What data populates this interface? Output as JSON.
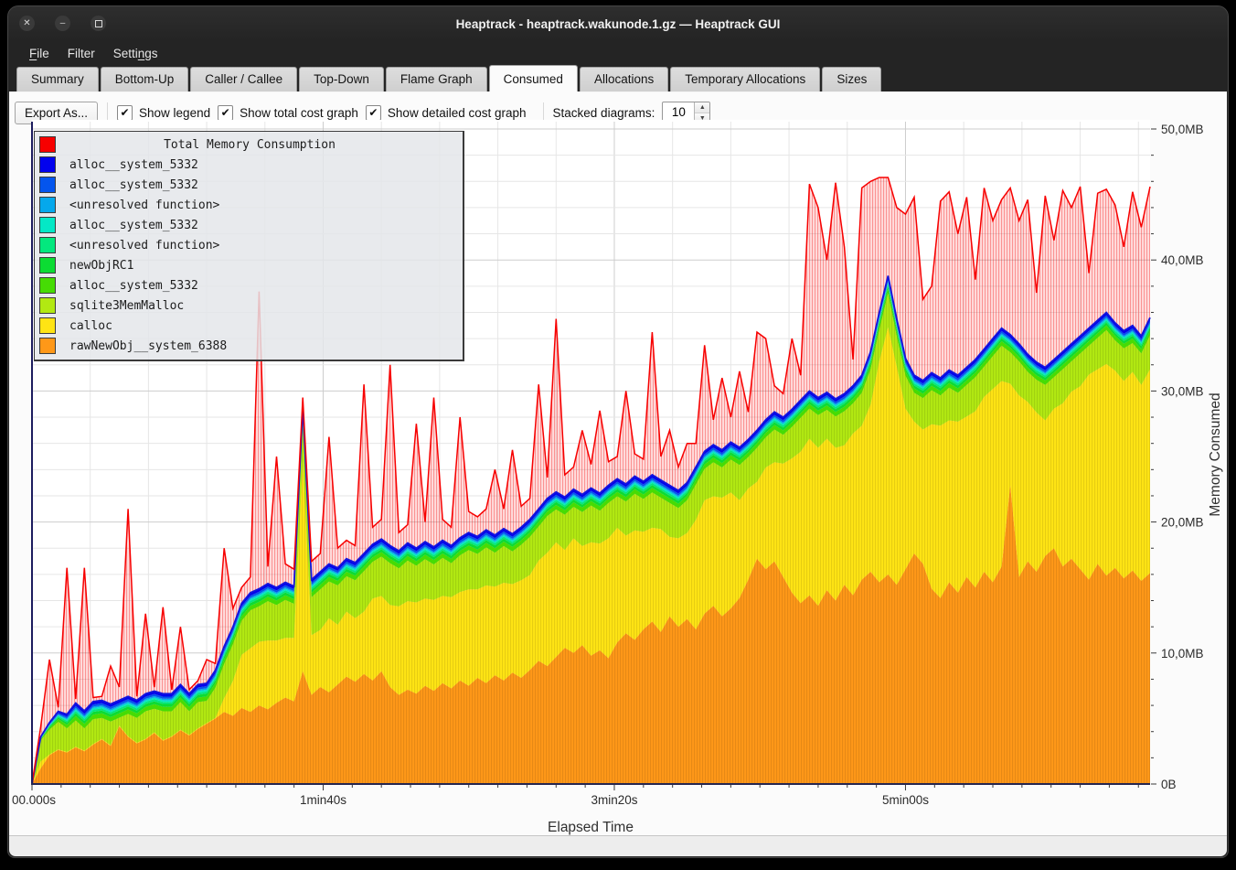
{
  "window": {
    "title": "Heaptrack - heaptrack.wakunode.1.gz — Heaptrack GUI",
    "controls": [
      "close",
      "minimize",
      "maximize"
    ]
  },
  "menu": {
    "items": [
      {
        "label": "File",
        "underline_index": 0
      },
      {
        "label": "Filter",
        "underline_index": -1
      },
      {
        "label": "Settings",
        "underline_index": 5
      }
    ]
  },
  "tabs": [
    {
      "label": "Summary",
      "active": false
    },
    {
      "label": "Bottom-Up",
      "active": false
    },
    {
      "label": "Caller / Callee",
      "active": false
    },
    {
      "label": "Top-Down",
      "active": false
    },
    {
      "label": "Flame Graph",
      "active": false
    },
    {
      "label": "Consumed",
      "active": true
    },
    {
      "label": "Allocations",
      "active": false
    },
    {
      "label": "Temporary Allocations",
      "active": false
    },
    {
      "label": "Sizes",
      "active": false
    }
  ],
  "toolbar": {
    "export_label": "Export As...",
    "checkboxes": [
      {
        "label": "Show legend",
        "checked": true
      },
      {
        "label": "Show total cost graph",
        "checked": true
      },
      {
        "label": "Show detailed cost graph",
        "checked": true
      }
    ],
    "stacked_label": "Stacked diagrams:",
    "stacked_value": "10",
    "check_glyph": "✔"
  },
  "chart_data": {
    "type": "area",
    "stacked": true,
    "title": "Total Memory Consumption",
    "xlabel": "Elapsed Time",
    "ylabel": "Memory Consumed",
    "x_unit": "s",
    "x_step_s": 3,
    "x_max_s": 384,
    "ylim_mb": [
      0,
      50
    ],
    "x_ticks": [
      {
        "t": 0,
        "label": "00.000s"
      },
      {
        "t": 100,
        "label": "1min40s"
      },
      {
        "t": 200,
        "label": "3min20s"
      },
      {
        "t": 300,
        "label": "5min00s"
      }
    ],
    "y_ticks": [
      {
        "v": 0,
        "label": "0B"
      },
      {
        "v": 10,
        "label": "10,0MB"
      },
      {
        "v": 20,
        "label": "20,0MB"
      },
      {
        "v": 30,
        "label": "30,0MB"
      },
      {
        "v": 40,
        "label": "40,0MB"
      },
      {
        "v": 50,
        "label": "50,0MB"
      }
    ],
    "grid": {
      "minor_x_s": 20,
      "major_x_s": 100,
      "minor_y_mb": 2,
      "major_y_mb": 10
    },
    "total_line": {
      "name": "Total Memory Consumption",
      "color": "#f70000",
      "values_mb": [
        0,
        4.4,
        9.5,
        5.8,
        16.5,
        6.4,
        16.5,
        6.6,
        6.2,
        9.0,
        7.4,
        21.0,
        6.6,
        13.0,
        6.8,
        13.5,
        7.0,
        12.0,
        7.2,
        7.6,
        9.5,
        9.2,
        18.0,
        13.4,
        15.0,
        15.8,
        37.6,
        16.6,
        25.0,
        16.8,
        16.4,
        29.5,
        17.0,
        17.6,
        26.5,
        18.0,
        18.6,
        18.2,
        30.5,
        19.6,
        20.2,
        32.0,
        19.2,
        19.8,
        27.5,
        20.0,
        29.5,
        20.2,
        19.6,
        28.0,
        20.8,
        20.4,
        21.0,
        24.0,
        21.0,
        25.5,
        21.2,
        21.8,
        30.5,
        23.4,
        35.5,
        23.6,
        24.2,
        27.0,
        24.4,
        28.5,
        24.6,
        25.0,
        30.0,
        25.2,
        24.8,
        34.5,
        25.0,
        27.0,
        24.2,
        26.0,
        26.0,
        33.5,
        27.8,
        31.0,
        28.0,
        31.5,
        28.4,
        34.5,
        34.0,
        30.4,
        29.8,
        34.0,
        31.2,
        45.8,
        44.0,
        40.0,
        45.9,
        41.0,
        32.4,
        45.5,
        46.0,
        46.3,
        46.3,
        44.0,
        43.5,
        44.8,
        37.0,
        38.0,
        44.5,
        45.2,
        42.0,
        44.8,
        38.5,
        45.5,
        43.0,
        44.6,
        45.5,
        43.0,
        44.6,
        37.5,
        44.9,
        41.5,
        45.3,
        44.0,
        45.6,
        39.0,
        45.1,
        45.4,
        44.2,
        41.0,
        45.2,
        42.5,
        45.6
      ]
    },
    "stack_top_mb": [
      0,
      3.6,
      4.6,
      5.0,
      5.3,
      5.7,
      5.4,
      5.9,
      5.6,
      6.1,
      6.4,
      5.9,
      5.6,
      6.0,
      5.7,
      6.2,
      5.9,
      6.3,
      6.0,
      6.4,
      6.2,
      8.0,
      10.5,
      12.0,
      13.8,
      14.6,
      14.9,
      15.3,
      15.0,
      15.4,
      15.1,
      28.8,
      15.6,
      16.2,
      16.8,
      16.5,
      17.2,
      16.9,
      17.6,
      18.3,
      18.7,
      18.2,
      17.8,
      18.4,
      18.0,
      18.5,
      18.1,
      18.6,
      18.2,
      18.8,
      19.2,
      18.9,
      19.4,
      19.0,
      19.5,
      19.1,
      19.6,
      20.2,
      21.0,
      21.8,
      22.3,
      21.9,
      22.5,
      22.1,
      22.6,
      22.2,
      22.8,
      23.3,
      22.9,
      23.5,
      23.1,
      23.6,
      23.2,
      22.8,
      22.4,
      23.0,
      24.2,
      25.4,
      25.9,
      25.5,
      26.1,
      25.7,
      26.3,
      27.0,
      27.8,
      28.4,
      28.0,
      28.6,
      29.3,
      30.0,
      29.5,
      29.9,
      29.4,
      29.8,
      30.4,
      31.2,
      33.0,
      36.0,
      38.8,
      35.5,
      32.5,
      31.2,
      30.8,
      31.4,
      31.0,
      31.6,
      31.2,
      31.8,
      32.4,
      33.2,
      34.0,
      34.8,
      34.3,
      33.6,
      32.8,
      32.2,
      31.8,
      32.4,
      33.0,
      33.6,
      34.2,
      34.8,
      35.4,
      36.0,
      35.2,
      34.6,
      35.0,
      34.2,
      35.6
    ],
    "series_bottom_to_top": [
      {
        "name": "rawNewObj__system_6388",
        "color": "#ff9818",
        "striped": true,
        "values_mb": [
          0,
          1.2,
          2.2,
          2.6,
          2.4,
          2.8,
          2.5,
          3.0,
          3.4,
          2.9,
          4.4,
          3.6,
          3.1,
          3.4,
          3.9,
          3.3,
          3.6,
          4.1,
          3.7,
          4.2,
          4.6,
          5.0,
          5.5,
          5.2,
          5.8,
          5.5,
          6.0,
          5.7,
          6.2,
          6.6,
          6.3,
          8.6,
          6.8,
          7.4,
          7.0,
          7.6,
          8.2,
          7.8,
          8.4,
          7.9,
          8.6,
          7.4,
          6.8,
          7.2,
          6.9,
          7.5,
          7.1,
          7.7,
          7.3,
          7.9,
          7.5,
          8.1,
          7.7,
          8.3,
          7.9,
          8.5,
          8.1,
          8.7,
          9.4,
          9.0,
          9.7,
          10.4,
          10.0,
          10.6,
          9.8,
          10.2,
          9.6,
          10.8,
          11.5,
          11.0,
          11.8,
          12.4,
          11.6,
          12.8,
          12.0,
          12.6,
          11.8,
          13.0,
          13.6,
          12.8,
          13.4,
          14.2,
          15.6,
          17.2,
          16.4,
          17.0,
          15.8,
          14.6,
          13.8,
          14.4,
          13.6,
          14.8,
          14.0,
          15.2,
          14.4,
          15.6,
          16.2,
          15.4,
          16.0,
          15.2,
          16.4,
          17.6,
          16.8,
          14.9,
          14.2,
          15.4,
          14.6,
          15.8,
          15.0,
          16.2,
          15.4,
          16.6,
          22.8,
          15.8,
          17.0,
          16.2,
          17.4,
          18.0,
          16.6,
          17.2,
          16.4,
          15.6,
          16.8,
          15.9,
          16.5,
          15.7,
          16.3,
          15.5,
          16.1
        ]
      },
      {
        "name": "calloc",
        "color": "#ffe414",
        "striped": true,
        "residual": true
      },
      {
        "name": "sqlite3MemMalloc",
        "color": "#b2e912",
        "striped": true,
        "values_mb": [
          0,
          1.6,
          1.9,
          2.1,
          1.8,
          2.0,
          1.7,
          1.9,
          1.6,
          1.8,
          0.6,
          1.7,
          1.9,
          2.1,
          1.8,
          2.2,
          1.9,
          2.1,
          1.8,
          2.0,
          1.7,
          2.3,
          2.6,
          2.8,
          2.6,
          2.9,
          2.7,
          3.0,
          2.7,
          2.9,
          2.6,
          2.8,
          2.9,
          3.1,
          2.8,
          3.0,
          2.7,
          2.9,
          3.1,
          2.8,
          3.0,
          3.2,
          2.9,
          3.1,
          2.8,
          3.0,
          2.7,
          2.9,
          2.6,
          2.8,
          3.0,
          2.7,
          2.9,
          2.6,
          2.8,
          2.5,
          2.7,
          2.9,
          2.6,
          2.8,
          2.5,
          2.7,
          2.4,
          2.6,
          2.8,
          2.5,
          2.7,
          2.4,
          2.6,
          2.8,
          2.5,
          2.7,
          2.4,
          2.6,
          2.3,
          2.5,
          2.7,
          2.4,
          2.6,
          2.3,
          2.5,
          2.7,
          2.4,
          2.6,
          2.3,
          2.5,
          2.2,
          2.4,
          2.6,
          2.3,
          2.5,
          2.2,
          2.4,
          2.6,
          2.3,
          2.5,
          2.7,
          2.4,
          2.6,
          2.3,
          2.5,
          2.2,
          2.4,
          2.6,
          2.3,
          2.5,
          2.2,
          2.4,
          2.6,
          2.3,
          2.5,
          2.7,
          2.4,
          2.6,
          2.3,
          2.5,
          2.7,
          2.4,
          2.6,
          2.3,
          2.5,
          2.2,
          2.4,
          2.6,
          2.3,
          2.5,
          2.2,
          2.4,
          2.6
        ]
      },
      {
        "name": "alloc__system_5332",
        "color": "#46dc04",
        "constant_mb": 0.34
      },
      {
        "name": "newObjRC1",
        "color": "#0cdc33",
        "constant_mb": 0.22
      },
      {
        "name": "<unresolved function>",
        "color": "#03e87e",
        "constant_mb": 0.16
      },
      {
        "name": "alloc__system_5332",
        "color": "#04e8c6",
        "constant_mb": 0.13
      },
      {
        "name": "<unresolved function>",
        "color": "#05a8ec",
        "constant_mb": 0.11
      },
      {
        "name": "alloc__system_5332",
        "color": "#0455ee",
        "constant_mb": 0.16
      },
      {
        "name": "alloc__system_5332",
        "color": "#0202ee",
        "constant_mb": 0.22
      }
    ],
    "legend_position": "top-left",
    "colors": {
      "total_line": "#f70000",
      "stack_top_line": "#1414dd",
      "axis": "#1c1c5e",
      "tick_label": "#2b2b2b",
      "grid_minor": "#e6e6e6",
      "grid_major": "#cdcdcd",
      "plot_bg": "#ffffff"
    }
  }
}
